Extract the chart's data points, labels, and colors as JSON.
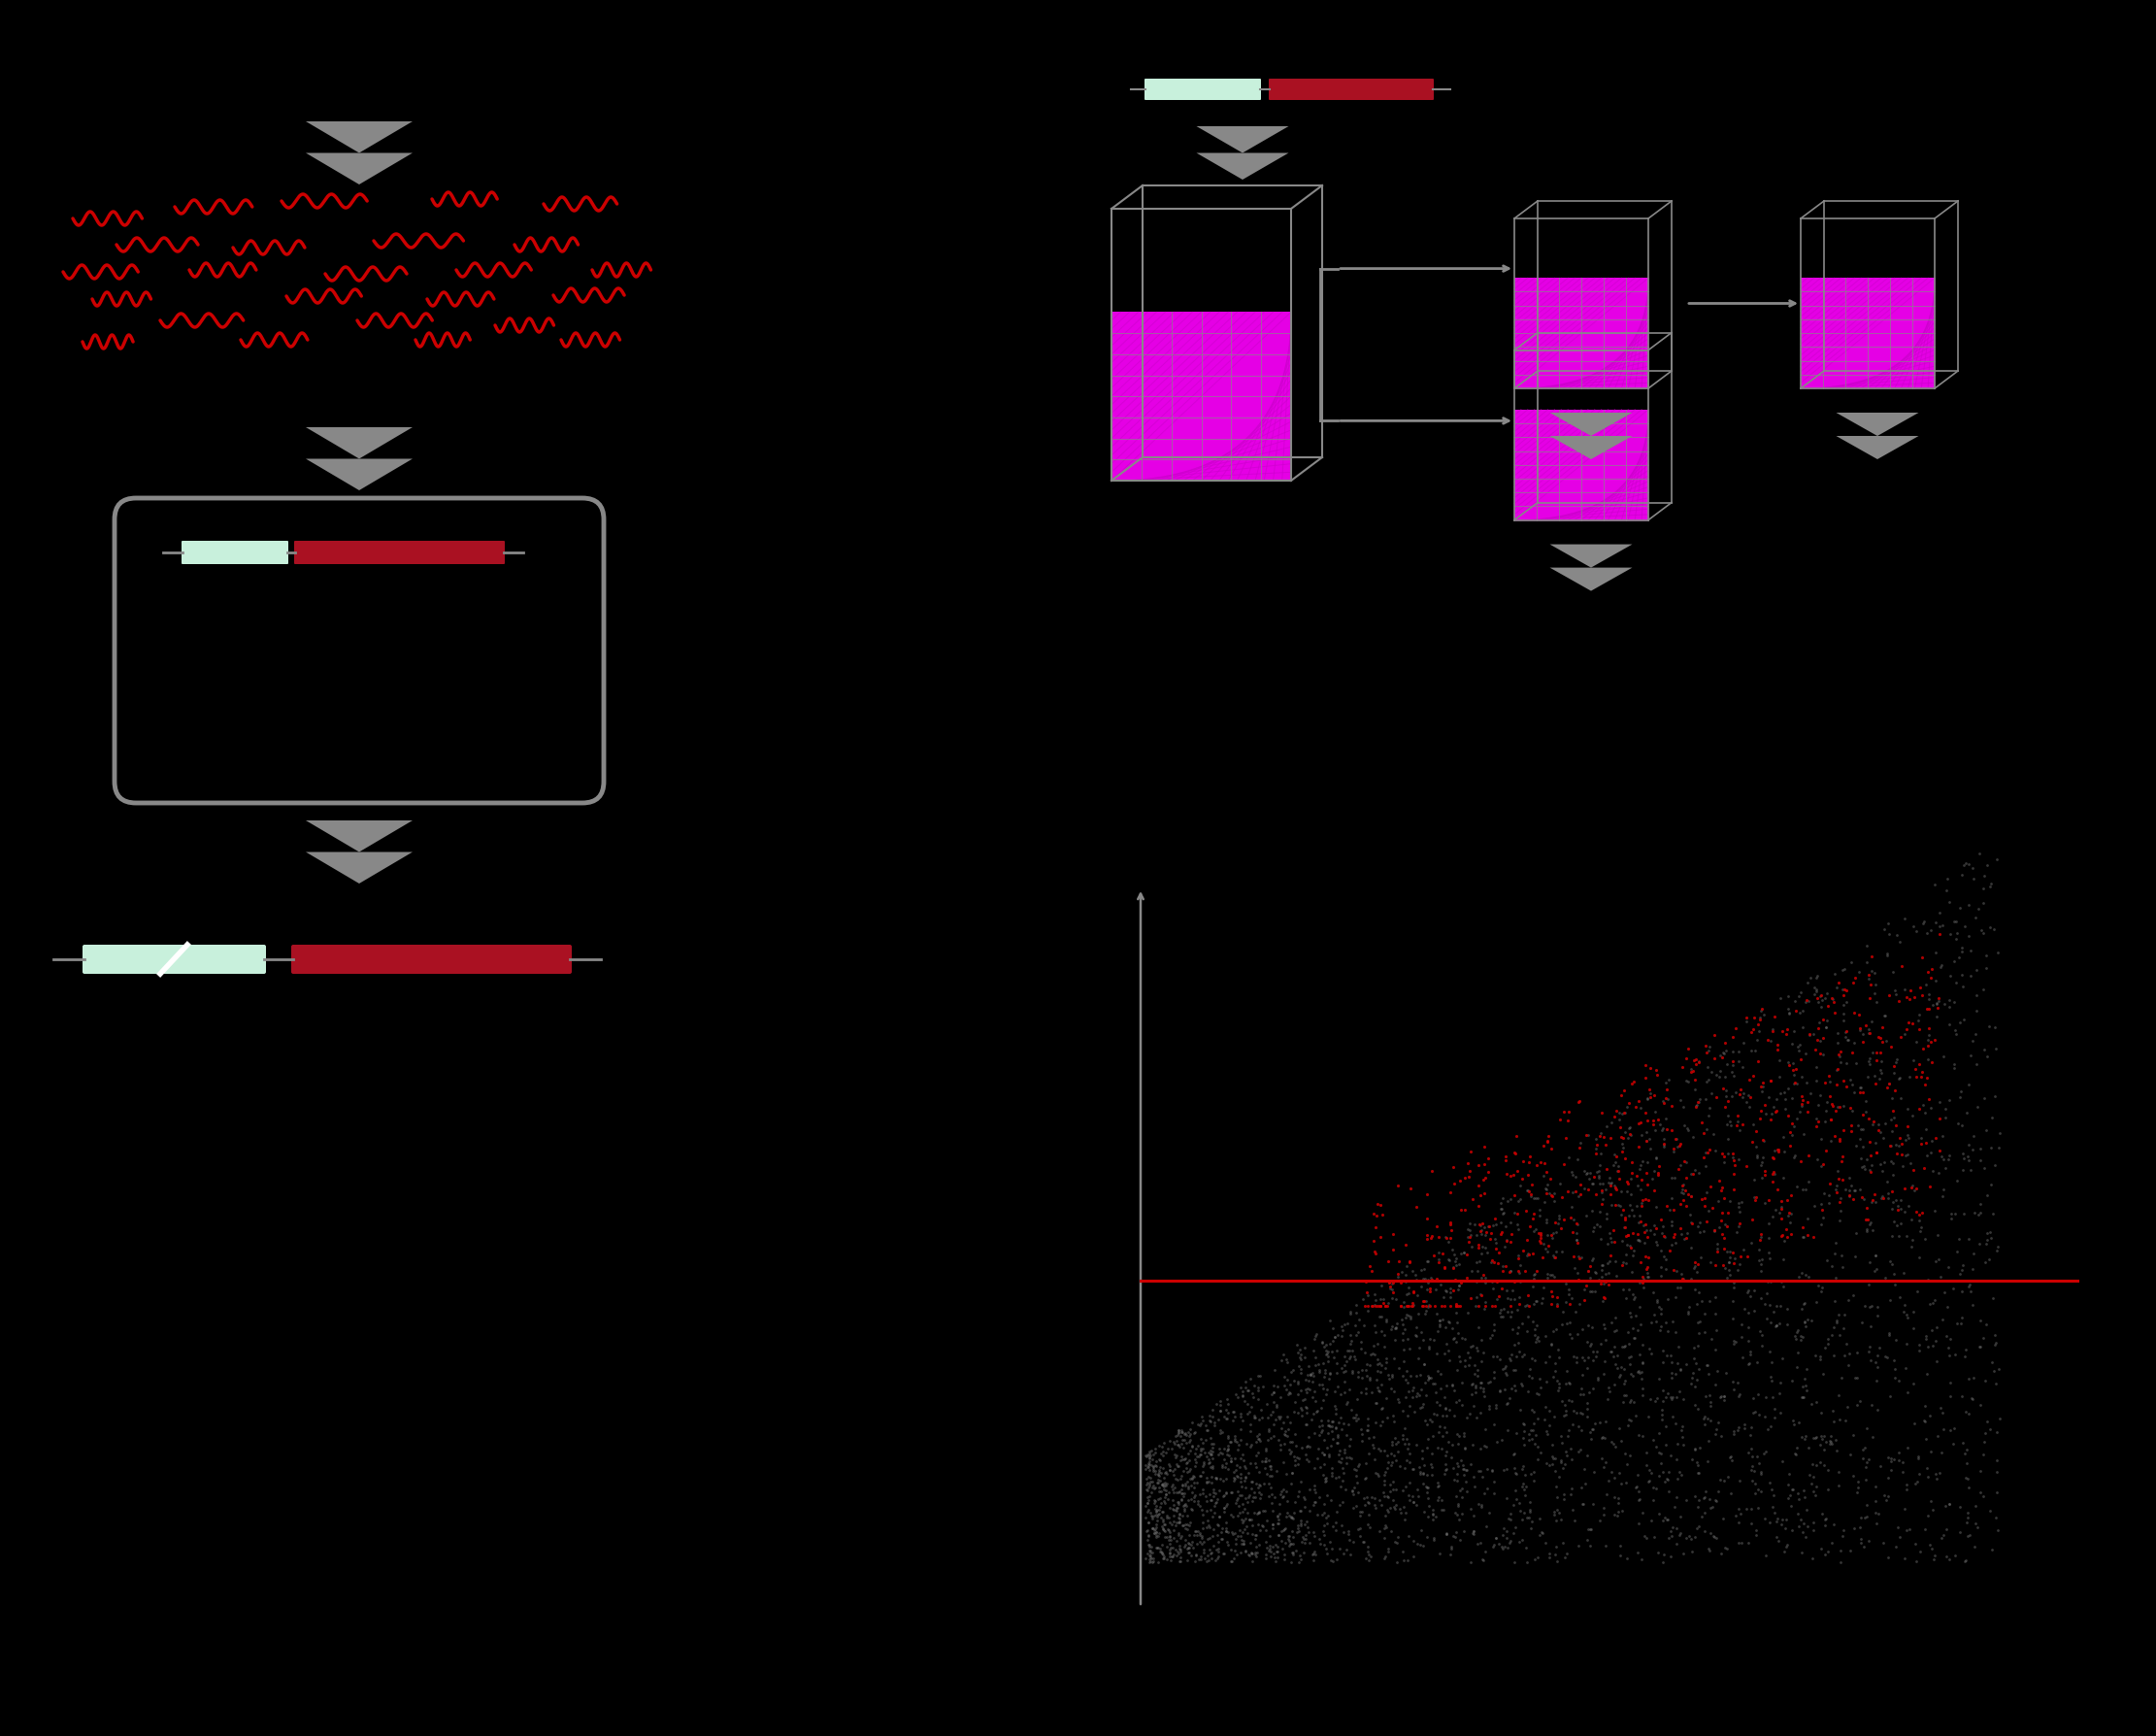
{
  "bg_color": "#000000",
  "wave_color": "#cc0000",
  "mint_color": "#c8f0dc",
  "red_bar_color": "#aa1122",
  "gray_color": "#888888",
  "magenta_color": "#ff00ff",
  "arrow_color": "#888888"
}
